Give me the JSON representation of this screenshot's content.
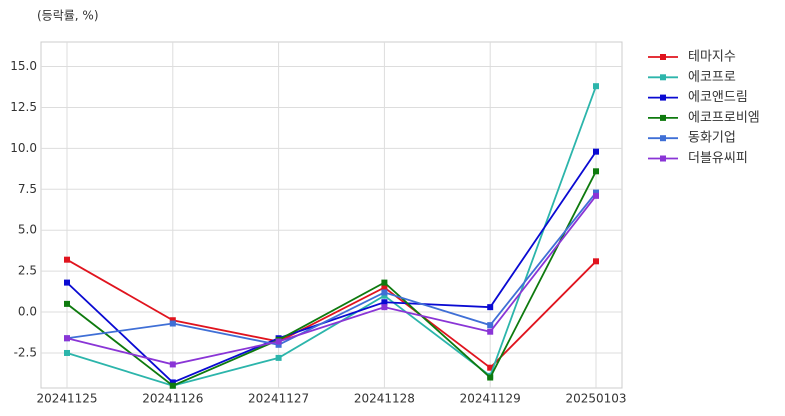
{
  "chart_data": {
    "type": "line",
    "unit_label": "(등락률, %)",
    "categories": [
      "20241125",
      "20241126",
      "20241127",
      "20241128",
      "20241129",
      "20250103"
    ],
    "series": [
      {
        "name": "테마지수",
        "color": "#e0141e",
        "values": [
          3.2,
          -0.5,
          -1.8,
          1.5,
          -3.4,
          3.1
        ]
      },
      {
        "name": "에코프로",
        "color": "#2cb5ab",
        "values": [
          -2.5,
          -4.5,
          -2.8,
          1.0,
          -3.9,
          13.8
        ]
      },
      {
        "name": "에코앤드림",
        "color": "#0a0ad2",
        "values": [
          1.8,
          -4.3,
          -1.6,
          0.6,
          0.3,
          9.8
        ]
      },
      {
        "name": "에코프로비엠",
        "color": "#0e7a0e",
        "values": [
          0.5,
          -4.5,
          -1.7,
          1.8,
          -4.0,
          8.6
        ]
      },
      {
        "name": "동화기업",
        "color": "#3f6fd6",
        "values": [
          -1.6,
          -0.7,
          -2.0,
          1.2,
          -0.8,
          7.3
        ]
      },
      {
        "name": "더블유씨피",
        "color": "#8a35d6",
        "values": [
          -1.6,
          -3.2,
          -1.8,
          0.3,
          -1.2,
          7.1
        ]
      }
    ],
    "ylim": [
      -4.64,
      16.5
    ],
    "yticks": [
      -2.5,
      {
        "value": 0,
        "label": "0.0"
      },
      2.5,
      {
        "value": 5,
        "label": "5.0"
      },
      7.5,
      {
        "value": 10,
        "label": "10.0"
      },
      12.5,
      {
        "value": 15,
        "label": "15.0"
      }
    ],
    "grid": true,
    "legend": "right"
  }
}
